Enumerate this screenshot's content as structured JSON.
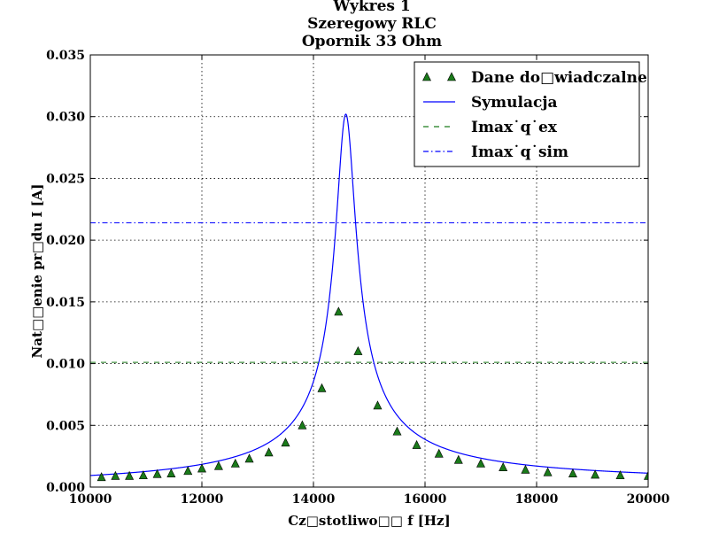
{
  "chart_data": {
    "type": "line",
    "title": [
      "Wykres 1",
      "Szeregowy RLC",
      "Opornik 33 Ohm"
    ],
    "xlabel": "Cz□stotliwo□□ f [Hz]",
    "ylabel": "Nat□□enie pr□du I [A]",
    "xlim": [
      10000,
      20000
    ],
    "ylim": [
      0,
      0.035
    ],
    "xticks": [
      10000,
      12000,
      14000,
      16000,
      18000,
      20000
    ],
    "xtick_labels": [
      "10000",
      "12000",
      "14000",
      "16000",
      "18000",
      "20000"
    ],
    "yticks": [
      0,
      0.005,
      0.01,
      0.015,
      0.02,
      0.025,
      0.03,
      0.035
    ],
    "ytick_labels": [
      "0.000",
      "0.005",
      "0.010",
      "0.015",
      "0.020",
      "0.025",
      "0.030",
      "0.035"
    ],
    "grid": true,
    "legend_position": "top-right",
    "series": [
      {
        "name": "Dane do□wiadczalne",
        "kind": "scatter",
        "marker": "triangle",
        "color": "#1a7a1a",
        "x": [
          10200,
          10450,
          10700,
          10950,
          11200,
          11450,
          11750,
          12000,
          12300,
          12600,
          12850,
          13200,
          13500,
          13800,
          14150,
          14450,
          14800,
          15150,
          15500,
          15850,
          16250,
          16600,
          17000,
          17400,
          17800,
          18200,
          18650,
          19050,
          19500,
          20000
        ],
        "y": [
          0.0008,
          0.0009,
          0.0009,
          0.00095,
          0.00105,
          0.0011,
          0.0013,
          0.0015,
          0.0017,
          0.0019,
          0.0023,
          0.0028,
          0.0036,
          0.005,
          0.008,
          0.0142,
          0.011,
          0.0066,
          0.0045,
          0.0034,
          0.0027,
          0.0022,
          0.0019,
          0.0016,
          0.0014,
          0.0012,
          0.0011,
          0.001,
          0.00095,
          0.0009
        ]
      },
      {
        "name": "Symulacja",
        "kind": "line",
        "color": "#0000ff",
        "model": {
          "peak_x": 14580,
          "peak_y": 0.0302,
          "half_width": 175
        },
        "x_range": [
          10000,
          20000
        ]
      },
      {
        "name": "Imax˙q˙ex",
        "kind": "hline",
        "style": "dashed",
        "color": "#1a7a1a",
        "y": 0.0101
      },
      {
        "name": "Imax˙q˙sim",
        "kind": "hline",
        "style": "dashdot",
        "color": "#0000ff",
        "y": 0.0214
      }
    ]
  }
}
